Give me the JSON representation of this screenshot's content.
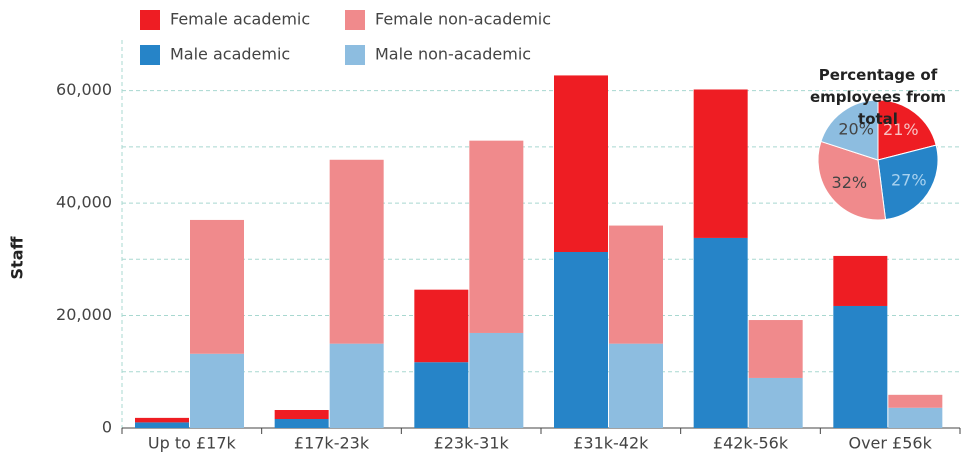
{
  "chart_data": [
    {
      "type": "bar",
      "y_label": "Staff",
      "categories": [
        "Up to £17k",
        "£17k-23k",
        "£23k-31k",
        "£31k-42k",
        "£42k-56k",
        "Over £56k"
      ],
      "series": [
        {
          "name": "Female academic",
          "color": "#ee1d23",
          "values": [
            800,
            1600,
            12900,
            31400,
            26400,
            8900
          ]
        },
        {
          "name": "Female non-academic",
          "color": "#f08a8c",
          "values": [
            23800,
            32700,
            34200,
            21000,
            10300,
            2300
          ]
        },
        {
          "name": "Male academic",
          "color": "#2684c8",
          "values": [
            1000,
            1600,
            11700,
            31300,
            33800,
            21700
          ]
        },
        {
          "name": "Male non-academic",
          "color": "#8dbde0",
          "values": [
            13200,
            15000,
            16900,
            15000,
            8900,
            3600
          ]
        }
      ],
      "ylim": [
        0,
        69000
      ],
      "yticks": [
        0,
        {
          "value": 20000,
          "label": "20,000"
        },
        {
          "value": 40000,
          "label": "40,000"
        },
        {
          "value": 60000,
          "label": "60,000"
        }
      ],
      "minor_yticks": [
        10000,
        30000,
        50000
      ],
      "grid": true
    },
    {
      "type": "pie",
      "title": "Percentage of employees from total",
      "categories": [
        "Female academic",
        "Male academic",
        "Female non-academic",
        "Male non-academic"
      ],
      "values": [
        21,
        27,
        32,
        20
      ],
      "value_labels": [
        "21%",
        "27%",
        "32%",
        "20%"
      ],
      "colors": [
        "#ee1d23",
        "#2684c8",
        "#f08a8c",
        "#8dbde0"
      ],
      "label_colors": [
        "#f7c3c4",
        "#a9d2ef",
        "#444444",
        "#444444"
      ]
    }
  ]
}
